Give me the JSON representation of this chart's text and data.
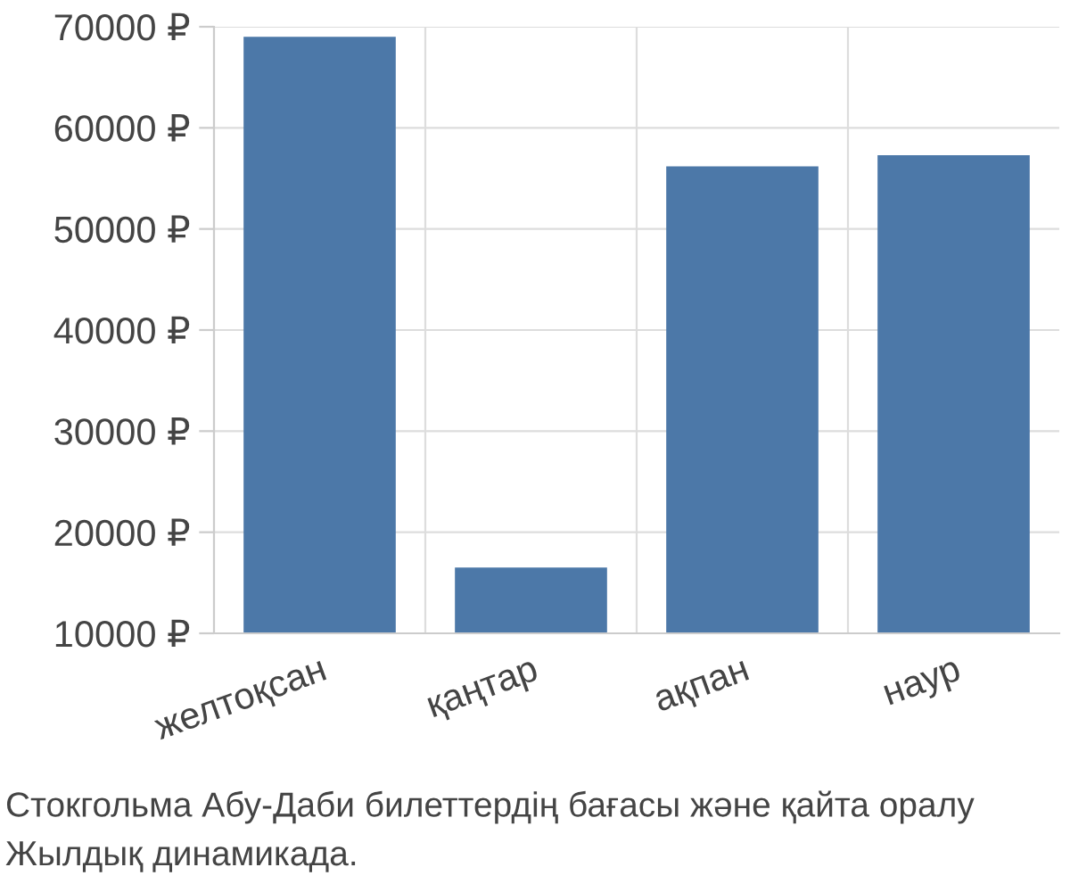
{
  "chart_data": {
    "type": "bar",
    "categories": [
      "желтоқсан",
      "қаңтар",
      "ақпан",
      "наур"
    ],
    "values": [
      69000,
      16500,
      56200,
      57300
    ],
    "color": "#4c78a8",
    "ylim": [
      10000,
      70000
    ],
    "yticks": [
      {
        "value": 10000,
        "label": "10000 ₽"
      },
      {
        "value": 20000,
        "label": "20000 ₽"
      },
      {
        "value": 30000,
        "label": "30000 ₽"
      },
      {
        "value": 40000,
        "label": "40000 ₽"
      },
      {
        "value": 50000,
        "label": "50000 ₽"
      },
      {
        "value": 60000,
        "label": "60000 ₽"
      },
      {
        "value": 70000,
        "label": "70000 ₽"
      }
    ],
    "grid": true,
    "annotations": [
      "Стокгольма Абу-Даби билеттердің бағасы және қайта оралу",
      "Жылдық динамикада."
    ]
  }
}
